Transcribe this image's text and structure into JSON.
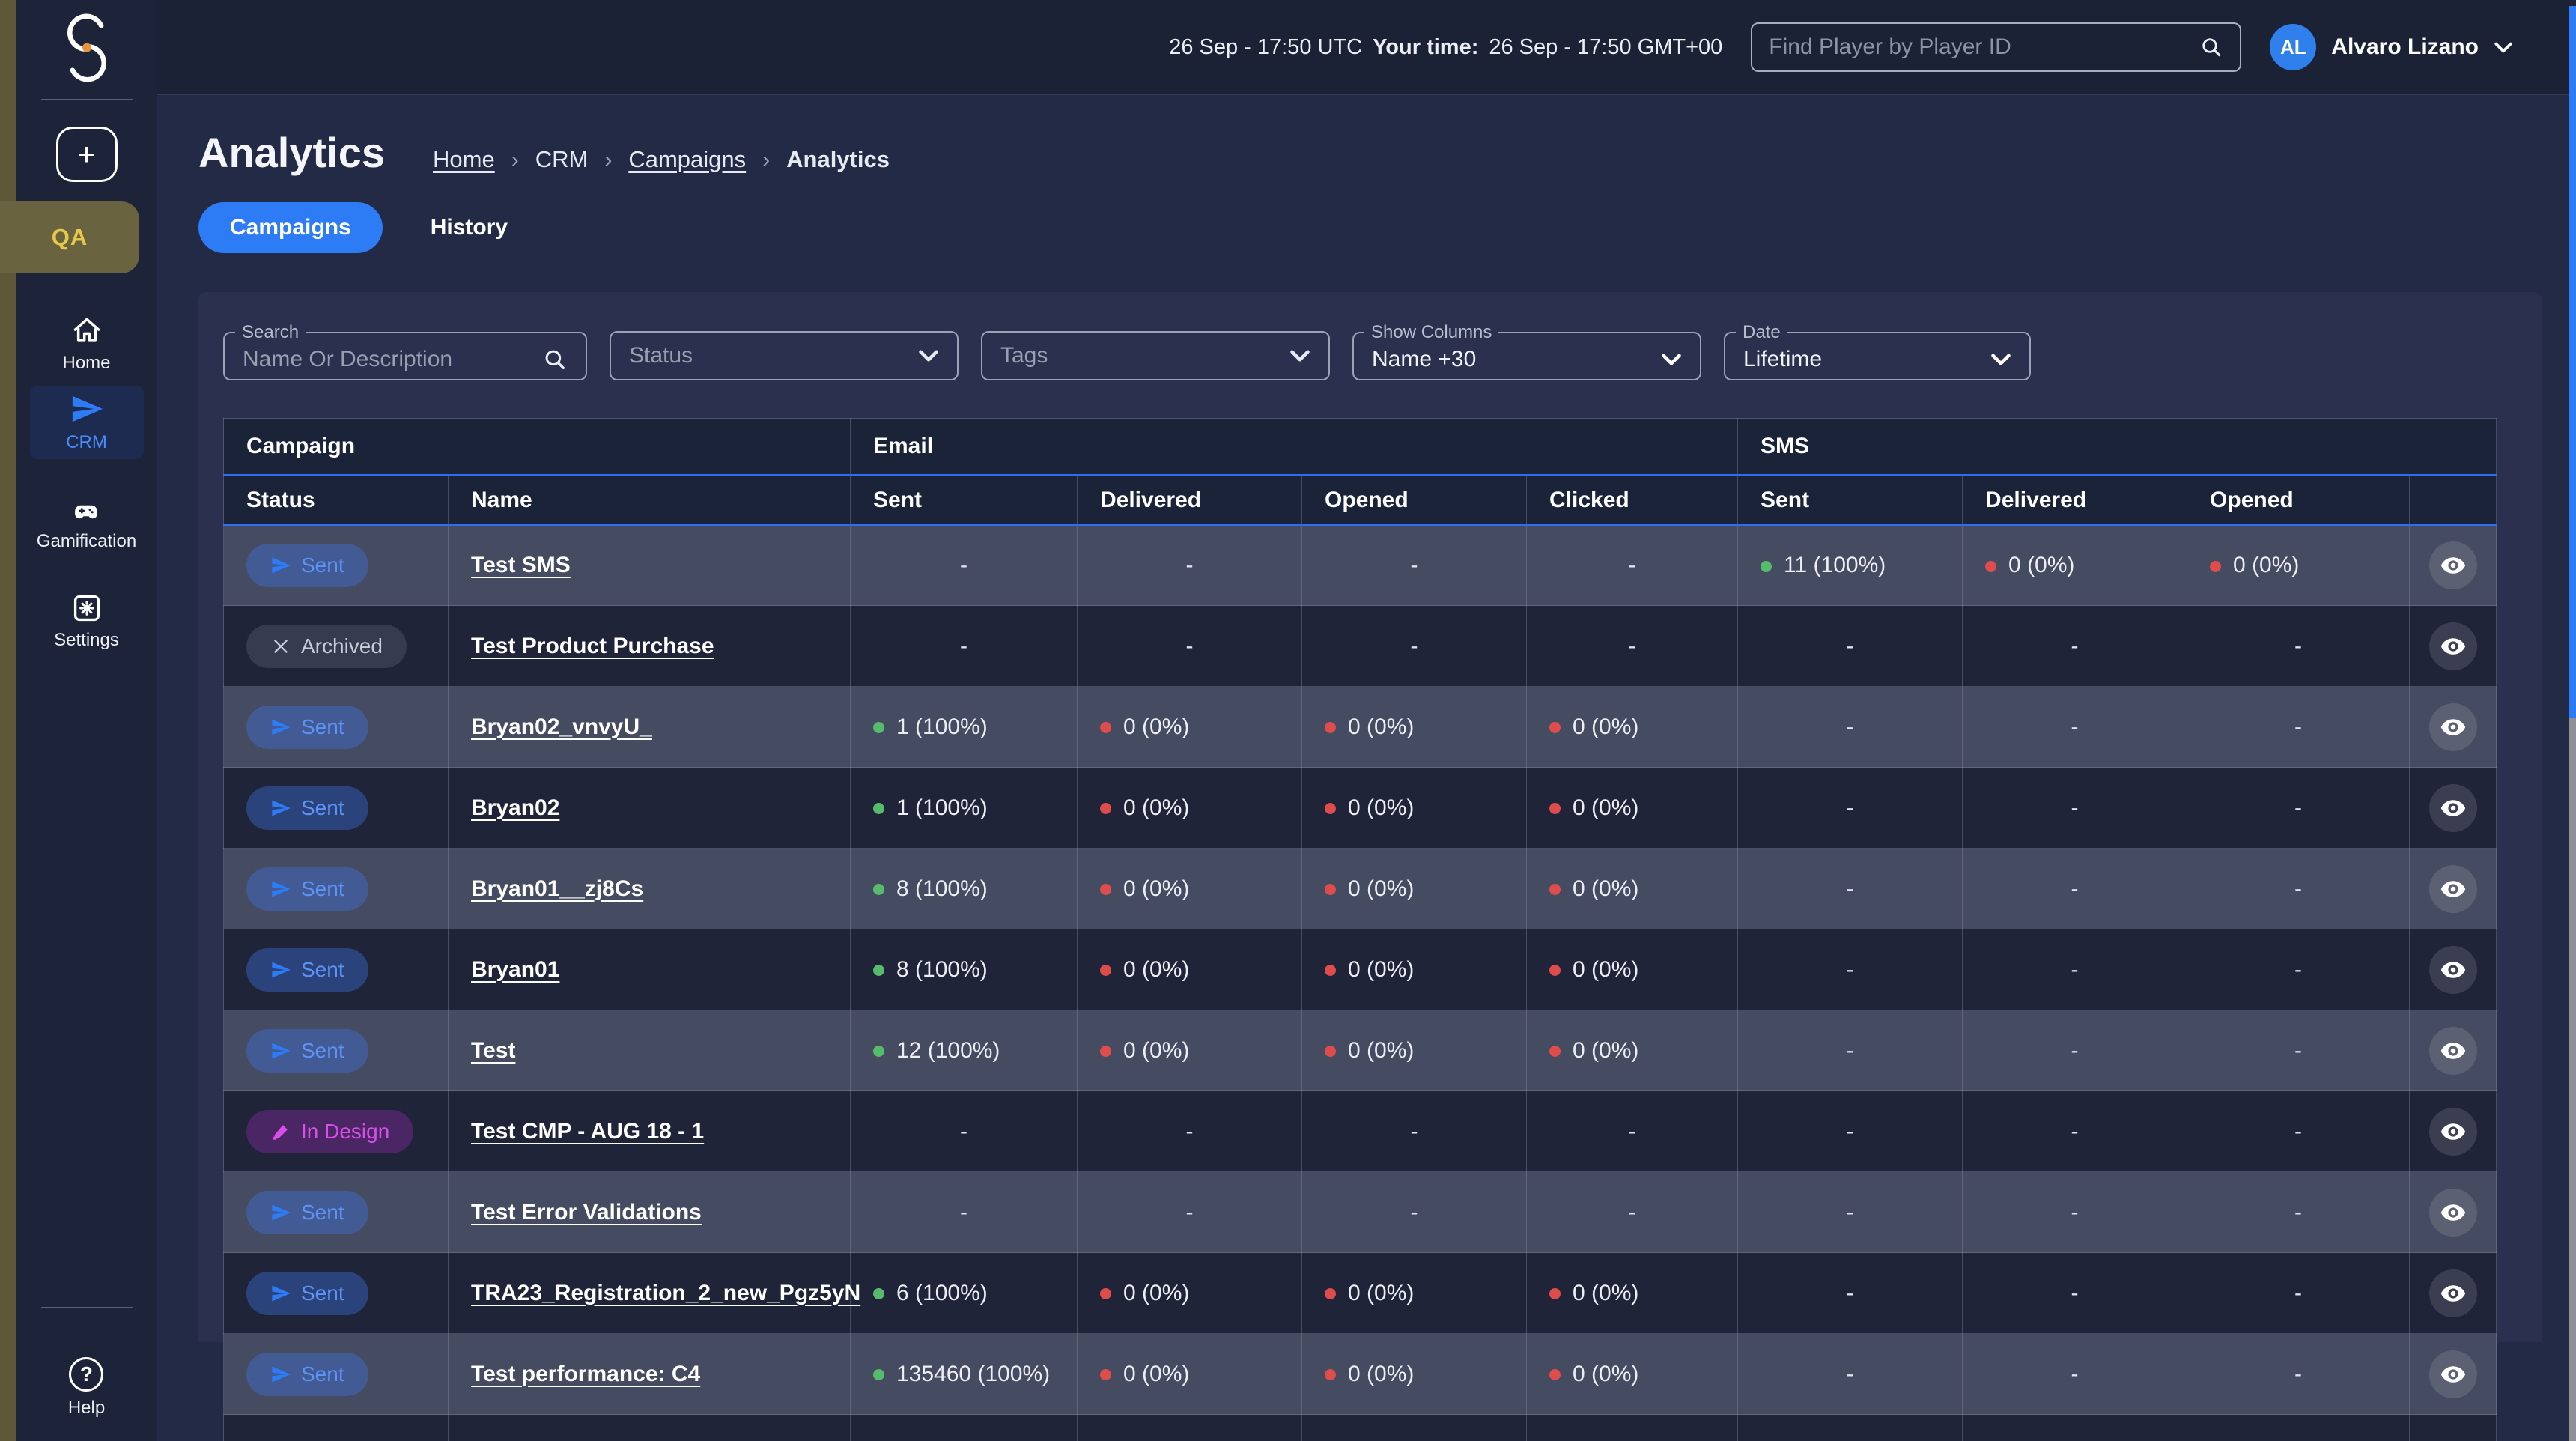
{
  "colors": {
    "accent_blue": "#2e7bf6",
    "status_sent_text": "#5d93f6",
    "status_archived_text": "#c9cdd8",
    "status_indesign_text": "#d84fe8",
    "metric_green": "#57bb6d",
    "metric_red": "#df4c4c",
    "qa_badge_gold": "#e6c84a",
    "avatar_blue": "#2f80ed",
    "scrollbar_blue": "#2e7bf6"
  },
  "topbar": {
    "utc_time": "26 Sep - 17:50 UTC",
    "your_time_label": "Your time:",
    "local_time": "26 Sep - 17:50 GMT+00",
    "player_search_placeholder": "Find Player by Player ID",
    "user_initials": "AL",
    "user_name": "Alvaro Lizano"
  },
  "sidebar": {
    "workspace_badge": "QA",
    "nav": [
      {
        "label": "Home"
      },
      {
        "label": "CRM"
      },
      {
        "label": "Gamification"
      },
      {
        "label": "Settings"
      }
    ],
    "help_label": "Help"
  },
  "page": {
    "title": "Analytics",
    "breadcrumb": [
      "Home",
      "CRM",
      "Campaigns",
      "Analytics"
    ],
    "tabs": [
      "Campaigns",
      "History"
    ]
  },
  "filters": {
    "search": {
      "label": "Search",
      "placeholder": "Name Or Description"
    },
    "status": {
      "placeholder": "Status"
    },
    "tags": {
      "placeholder": "Tags"
    },
    "show_columns": {
      "label": "Show Columns",
      "value": "Name +30"
    },
    "date": {
      "label": "Date",
      "value": "Lifetime"
    }
  },
  "table": {
    "groups": [
      {
        "label": "Campaign"
      },
      {
        "label": "Email"
      },
      {
        "label": "SMS"
      }
    ],
    "columns": [
      "Status",
      "Name",
      "Sent",
      "Delivered",
      "Opened",
      "Clicked",
      "Sent",
      "Delivered",
      "Opened",
      ""
    ],
    "rows": [
      {
        "cells": [
          {
            "kind": "chip",
            "variant": "sent",
            "label": "Sent"
          },
          {
            "kind": "link",
            "text": "Test SMS"
          },
          {
            "kind": "dash"
          },
          {
            "kind": "dash"
          },
          {
            "kind": "dash"
          },
          {
            "kind": "dash"
          },
          {
            "kind": "metric",
            "dot": "green",
            "text": "11 (100%)"
          },
          {
            "kind": "metric",
            "dot": "red",
            "text": "0 (0%)"
          },
          {
            "kind": "metric",
            "dot": "red",
            "text": "0 (0%)"
          },
          {
            "kind": "eye"
          }
        ]
      },
      {
        "cells": [
          {
            "kind": "chip",
            "variant": "archived",
            "label": "Archived"
          },
          {
            "kind": "link",
            "text": "Test Product Purchase"
          },
          {
            "kind": "dash"
          },
          {
            "kind": "dash"
          },
          {
            "kind": "dash"
          },
          {
            "kind": "dash"
          },
          {
            "kind": "dash"
          },
          {
            "kind": "dash"
          },
          {
            "kind": "dash"
          },
          {
            "kind": "eye"
          }
        ]
      },
      {
        "cells": [
          {
            "kind": "chip",
            "variant": "sent",
            "label": "Sent"
          },
          {
            "kind": "link",
            "text": "Bryan02_vnvyU_"
          },
          {
            "kind": "metric",
            "dot": "green",
            "text": "1 (100%)"
          },
          {
            "kind": "metric",
            "dot": "red",
            "text": "0 (0%)"
          },
          {
            "kind": "metric",
            "dot": "red",
            "text": "0 (0%)"
          },
          {
            "kind": "metric",
            "dot": "red",
            "text": "0 (0%)"
          },
          {
            "kind": "dash"
          },
          {
            "kind": "dash"
          },
          {
            "kind": "dash"
          },
          {
            "kind": "eye"
          }
        ]
      },
      {
        "cells": [
          {
            "kind": "chip",
            "variant": "sent",
            "label": "Sent"
          },
          {
            "kind": "link",
            "text": "Bryan02"
          },
          {
            "kind": "metric",
            "dot": "green",
            "text": "1 (100%)"
          },
          {
            "kind": "metric",
            "dot": "red",
            "text": "0 (0%)"
          },
          {
            "kind": "metric",
            "dot": "red",
            "text": "0 (0%)"
          },
          {
            "kind": "metric",
            "dot": "red",
            "text": "0 (0%)"
          },
          {
            "kind": "dash"
          },
          {
            "kind": "dash"
          },
          {
            "kind": "dash"
          },
          {
            "kind": "eye"
          }
        ]
      },
      {
        "cells": [
          {
            "kind": "chip",
            "variant": "sent",
            "label": "Sent"
          },
          {
            "kind": "link",
            "text": "Bryan01__zj8Cs"
          },
          {
            "kind": "metric",
            "dot": "green",
            "text": "8 (100%)"
          },
          {
            "kind": "metric",
            "dot": "red",
            "text": "0 (0%)"
          },
          {
            "kind": "metric",
            "dot": "red",
            "text": "0 (0%)"
          },
          {
            "kind": "metric",
            "dot": "red",
            "text": "0 (0%)"
          },
          {
            "kind": "dash"
          },
          {
            "kind": "dash"
          },
          {
            "kind": "dash"
          },
          {
            "kind": "eye"
          }
        ]
      },
      {
        "cells": [
          {
            "kind": "chip",
            "variant": "sent",
            "label": "Sent"
          },
          {
            "kind": "link",
            "text": "Bryan01"
          },
          {
            "kind": "metric",
            "dot": "green",
            "text": "8 (100%)"
          },
          {
            "kind": "metric",
            "dot": "red",
            "text": "0 (0%)"
          },
          {
            "kind": "metric",
            "dot": "red",
            "text": "0 (0%)"
          },
          {
            "kind": "metric",
            "dot": "red",
            "text": "0 (0%)"
          },
          {
            "kind": "dash"
          },
          {
            "kind": "dash"
          },
          {
            "kind": "dash"
          },
          {
            "kind": "eye"
          }
        ]
      },
      {
        "cells": [
          {
            "kind": "chip",
            "variant": "sent",
            "label": "Sent"
          },
          {
            "kind": "link",
            "text": "Test"
          },
          {
            "kind": "metric",
            "dot": "green",
            "text": "12 (100%)"
          },
          {
            "kind": "metric",
            "dot": "red",
            "text": "0 (0%)"
          },
          {
            "kind": "metric",
            "dot": "red",
            "text": "0 (0%)"
          },
          {
            "kind": "metric",
            "dot": "red",
            "text": "0 (0%)"
          },
          {
            "kind": "dash"
          },
          {
            "kind": "dash"
          },
          {
            "kind": "dash"
          },
          {
            "kind": "eye"
          }
        ]
      },
      {
        "cells": [
          {
            "kind": "chip",
            "variant": "indesign",
            "label": "In Design"
          },
          {
            "kind": "link",
            "text": "Test CMP - AUG 18 - 1"
          },
          {
            "kind": "dash"
          },
          {
            "kind": "dash"
          },
          {
            "kind": "dash"
          },
          {
            "kind": "dash"
          },
          {
            "kind": "dash"
          },
          {
            "kind": "dash"
          },
          {
            "kind": "dash"
          },
          {
            "kind": "eye"
          }
        ]
      },
      {
        "cells": [
          {
            "kind": "chip",
            "variant": "sent",
            "label": "Sent"
          },
          {
            "kind": "link",
            "text": "Test Error Validations"
          },
          {
            "kind": "dash"
          },
          {
            "kind": "dash"
          },
          {
            "kind": "dash"
          },
          {
            "kind": "dash"
          },
          {
            "kind": "dash"
          },
          {
            "kind": "dash"
          },
          {
            "kind": "dash"
          },
          {
            "kind": "eye"
          }
        ]
      },
      {
        "cells": [
          {
            "kind": "chip",
            "variant": "sent",
            "label": "Sent"
          },
          {
            "kind": "link",
            "text": "TRA23_Registration_2_new_Pgz5yN"
          },
          {
            "kind": "metric",
            "dot": "green",
            "text": "6 (100%)"
          },
          {
            "kind": "metric",
            "dot": "red",
            "text": "0 (0%)"
          },
          {
            "kind": "metric",
            "dot": "red",
            "text": "0 (0%)"
          },
          {
            "kind": "metric",
            "dot": "red",
            "text": "0 (0%)"
          },
          {
            "kind": "dash"
          },
          {
            "kind": "dash"
          },
          {
            "kind": "dash"
          },
          {
            "kind": "eye"
          }
        ]
      },
      {
        "cells": [
          {
            "kind": "chip",
            "variant": "sent",
            "label": "Sent"
          },
          {
            "kind": "link",
            "text": "Test performance: C4"
          },
          {
            "kind": "metric",
            "dot": "green",
            "text": "135460 (100%)"
          },
          {
            "kind": "metric",
            "dot": "red",
            "text": "0 (0%)"
          },
          {
            "kind": "metric",
            "dot": "red",
            "text": "0 (0%)"
          },
          {
            "kind": "metric",
            "dot": "red",
            "text": "0 (0%)"
          },
          {
            "kind": "dash"
          },
          {
            "kind": "dash"
          },
          {
            "kind": "dash"
          },
          {
            "kind": "eye"
          }
        ]
      },
      {
        "cells": [
          {
            "kind": "empty"
          },
          {
            "kind": "empty"
          },
          {
            "kind": "empty"
          },
          {
            "kind": "empty"
          },
          {
            "kind": "empty"
          },
          {
            "kind": "empty"
          },
          {
            "kind": "empty"
          },
          {
            "kind": "empty"
          },
          {
            "kind": "empty"
          },
          {
            "kind": "empty"
          }
        ]
      }
    ]
  }
}
